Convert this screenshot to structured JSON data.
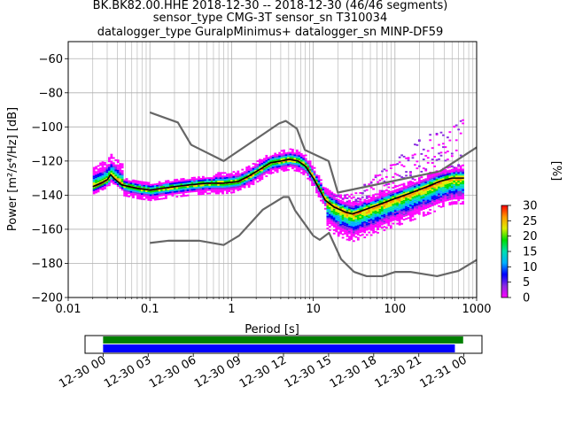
{
  "header": {
    "title_line1": "BK.BK82.00.HHE   2018-12-30 -- 2018-12-30  (46/46 segments)",
    "title_line2": "sensor_type CMG-3T sensor_sn T310034",
    "title_line3": "datalogger_type GuralpMinimus+ datalogger_sn MINP-DF59"
  },
  "chart_data": [
    {
      "type": "heatmap",
      "subtype": "probabilistic-power-spectral-density",
      "xlabel": "Period [s]",
      "ylabel": "Power [m²/s⁴/Hz] [dB]",
      "xscale": "log",
      "xlim": [
        0.01,
        1000
      ],
      "ylim": [
        -200,
        -50
      ],
      "grid": true,
      "x_ticks": [
        0.01,
        0.1,
        1,
        10,
        100,
        1000
      ],
      "x_tick_labels": [
        "0.01",
        "0.1",
        "1",
        "10",
        "100",
        "1000"
      ],
      "y_ticks": [
        -200,
        -180,
        -160,
        -140,
        -120,
        -100,
        -80,
        -60
      ],
      "y_tick_labels": [
        "−200",
        "−180",
        "−160",
        "−140",
        "−120",
        "−100",
        "−80",
        "−60"
      ],
      "colorbar": {
        "label": "[%]",
        "range": [
          0,
          30
        ],
        "ticks": [
          0,
          5,
          10,
          15,
          20,
          25,
          30
        ],
        "tick_labels": [
          "0",
          "5",
          "10",
          "15",
          "20",
          "25",
          "30"
        ]
      },
      "noise_models": [
        {
          "model": "NHNM",
          "color": "#666666",
          "points": [
            [
              0.1,
              -91.5
            ],
            [
              0.22,
              -97.4
            ],
            [
              0.32,
              -110.5
            ],
            [
              0.8,
              -120
            ],
            [
              3.8,
              -98
            ],
            [
              4.6,
              -96.5
            ],
            [
              6.3,
              -101
            ],
            [
              7.9,
              -113.5
            ],
            [
              15.4,
              -120
            ],
            [
              20,
              -138.5
            ],
            [
              354.8,
              -126
            ],
            [
              1000,
              -112
            ]
          ]
        },
        {
          "model": "NLNM",
          "color": "#666666",
          "points": [
            [
              0.1,
              -168
            ],
            [
              0.17,
              -166.7
            ],
            [
              0.4,
              -166.7
            ],
            [
              0.8,
              -169.2
            ],
            [
              1.24,
              -163.7
            ],
            [
              2.4,
              -148.6
            ],
            [
              4.3,
              -141.1
            ],
            [
              5,
              -141.1
            ],
            [
              6,
              -149
            ],
            [
              10,
              -163.8
            ],
            [
              12,
              -166.2
            ],
            [
              15.6,
              -162.1
            ],
            [
              21.9,
              -177.5
            ],
            [
              31.6,
              -185
            ],
            [
              45,
              -187.5
            ],
            [
              70,
              -187.5
            ],
            [
              101,
              -185
            ],
            [
              154,
              -185
            ],
            [
              328,
              -187.5
            ],
            [
              600,
              -184.4
            ],
            [
              1000,
              -178
            ]
          ]
        }
      ],
      "mode_curve": {
        "color": "#000000",
        "points": [
          [
            0.02,
            -135
          ],
          [
            0.025,
            -133
          ],
          [
            0.03,
            -131
          ],
          [
            0.033,
            -128
          ],
          [
            0.036,
            -130
          ],
          [
            0.045,
            -134
          ],
          [
            0.07,
            -136
          ],
          [
            0.1,
            -137
          ],
          [
            0.2,
            -135
          ],
          [
            0.3,
            -134
          ],
          [
            0.5,
            -133
          ],
          [
            0.8,
            -133
          ],
          [
            1.2,
            -132
          ],
          [
            1.6,
            -129
          ],
          [
            2.2,
            -125
          ],
          [
            3,
            -121
          ],
          [
            4,
            -120
          ],
          [
            5,
            -119
          ],
          [
            6.5,
            -120
          ],
          [
            8,
            -123
          ],
          [
            10,
            -130
          ],
          [
            12,
            -137
          ],
          [
            14,
            -143
          ],
          [
            18,
            -147
          ],
          [
            25,
            -150
          ],
          [
            30,
            -151
          ],
          [
            40,
            -149
          ],
          [
            60,
            -146
          ],
          [
            100,
            -142
          ],
          [
            150,
            -139
          ],
          [
            250,
            -135
          ],
          [
            350,
            -132
          ],
          [
            500,
            -130
          ],
          [
            700,
            -130
          ]
        ]
      },
      "density_colors": [
        "#ff00ff",
        "#8a2be2",
        "#0000ff",
        "#00b0ff",
        "#00e0b0",
        "#00dd00",
        "#ddee00",
        "#ff9900",
        "#ff0000"
      ]
    },
    {
      "type": "timeline",
      "x_tick_labels": [
        "12-30 00",
        "12-30 03",
        "12-30 06",
        "12-30 09",
        "12-30 12",
        "12-30 15",
        "12-30 18",
        "12-30 21",
        "12-31 00"
      ],
      "x_ticks_hours": [
        0,
        3,
        6,
        9,
        12,
        15,
        18,
        21,
        24
      ],
      "xlim_hours": [
        -1.2,
        25.2
      ],
      "series": [
        {
          "role": "data-coverage",
          "color": "#008000",
          "start_hour": 0,
          "end_hour": 23.95
        },
        {
          "role": "used-in-psd",
          "color": "#0000ff",
          "start_hour": 0,
          "end_hour": 23.4
        }
      ]
    }
  ]
}
